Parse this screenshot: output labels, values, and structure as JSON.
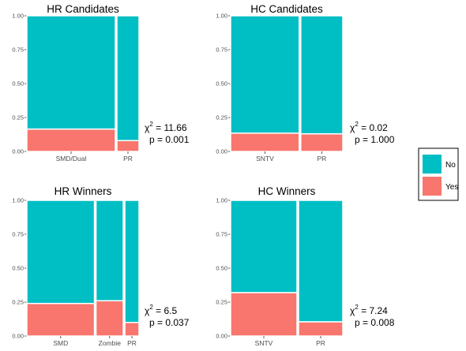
{
  "legend": {
    "placement": "right",
    "entries": [
      {
        "label": "No",
        "color": "#00BFC4"
      },
      {
        "label": "Yes",
        "color": "#F8766D"
      }
    ]
  },
  "stat_symbol": "χ",
  "stat_exponent": "2",
  "stat_p_prefix": "p",
  "chart_data": [
    {
      "type": "mosaic",
      "title": "HR Candidates",
      "ylim": [
        0,
        1
      ],
      "yticks": [
        "0.00",
        "0.25",
        "0.50",
        "0.75",
        "1.00"
      ],
      "categories": [
        "SMD/Dual",
        "PR"
      ],
      "widths": [
        0.8,
        0.2
      ],
      "series": [
        {
          "name": "No",
          "values": [
            0.835,
            0.92
          ]
        },
        {
          "name": "Yes",
          "values": [
            0.165,
            0.08
          ]
        }
      ],
      "chi2": "11.66",
      "p": "0.001"
    },
    {
      "type": "mosaic",
      "title": "HC Candidates",
      "ylim": [
        0,
        1
      ],
      "yticks": [
        "0.00",
        "0.25",
        "0.50",
        "0.75",
        "1.00"
      ],
      "categories": [
        "SNTV",
        "PR"
      ],
      "widths": [
        0.62,
        0.38
      ],
      "series": [
        {
          "name": "No",
          "values": [
            0.865,
            0.87
          ]
        },
        {
          "name": "Yes",
          "values": [
            0.135,
            0.13
          ]
        }
      ],
      "chi2": "0.02",
      "p": "1.000"
    },
    {
      "type": "mosaic",
      "title": "HR Winners",
      "ylim": [
        0,
        1
      ],
      "yticks": [
        "0.00",
        "0.25",
        "0.50",
        "0.75",
        "1.00"
      ],
      "categories": [
        "SMD",
        "Zombie",
        "PR"
      ],
      "widths": [
        0.62,
        0.25,
        0.13
      ],
      "series": [
        {
          "name": "No",
          "values": [
            0.76,
            0.74,
            0.9
          ]
        },
        {
          "name": "Yes",
          "values": [
            0.24,
            0.26,
            0.1
          ]
        }
      ],
      "chi2": "6.5",
      "p": "0.037"
    },
    {
      "type": "mosaic",
      "title": "HC Winners",
      "ylim": [
        0,
        1
      ],
      "yticks": [
        "0.00",
        "0.25",
        "0.50",
        "0.75",
        "1.00"
      ],
      "categories": [
        "SNTV",
        "PR"
      ],
      "widths": [
        0.6,
        0.4
      ],
      "series": [
        {
          "name": "No",
          "values": [
            0.68,
            0.895
          ]
        },
        {
          "name": "Yes",
          "values": [
            0.32,
            0.105
          ]
        }
      ],
      "chi2": "7.24",
      "p": "0.008"
    }
  ]
}
